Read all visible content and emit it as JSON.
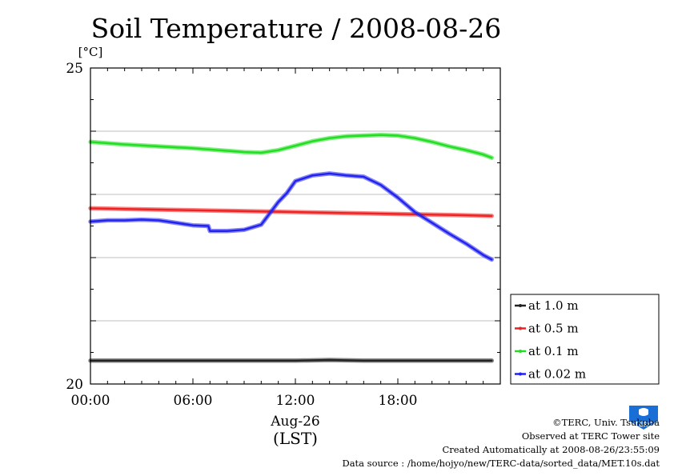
{
  "footer": {
    "copyright": "©TERC, Univ. Tsukuba",
    "observed": "Observed at TERC Tower site",
    "created": "Created Automatically at 2008-08-26/23:55:09",
    "source": "Data source : /home/hojyo/new/TERC-data/sorted_data/MET.10s.dat"
  },
  "logo": {
    "text": "TERC",
    "color": "#1a6fd6"
  },
  "chart_data": {
    "type": "line",
    "title": "Soil Temperature / 2008-08-26",
    "ylabel": "[°C]",
    "xlabel_date": "Aug-26",
    "xlabel_tz": "(LST)",
    "xlim": [
      0,
      24
    ],
    "ylim": [
      20,
      25
    ],
    "y_ticks_labeled": [
      {
        "value": 20,
        "label": "20"
      },
      {
        "value": 25,
        "label": "25"
      }
    ],
    "y_gridlines": [
      21,
      22,
      23,
      24
    ],
    "x_ticks_labeled": [
      {
        "value": 0,
        "label": "00:00"
      },
      {
        "value": 6,
        "label": "06:00"
      },
      {
        "value": 12,
        "label": "12:00"
      },
      {
        "value": 18,
        "label": "18:00"
      }
    ],
    "grid": true,
    "legend_position": "lower-right-outside",
    "series": [
      {
        "name": "at 1.0 m",
        "color": "#222222",
        "x": [
          0,
          2,
          4,
          6,
          8,
          10,
          12,
          14,
          16,
          18,
          20,
          22,
          23.5
        ],
        "y": [
          20.37,
          20.37,
          20.37,
          20.37,
          20.37,
          20.37,
          20.37,
          20.38,
          20.37,
          20.37,
          20.37,
          20.37,
          20.37
        ]
      },
      {
        "name": "at 0.5 m",
        "color": "#ee2222",
        "x": [
          0,
          2,
          4,
          6,
          8,
          10,
          12,
          14,
          16,
          18,
          20,
          22,
          23.5
        ],
        "y": [
          22.78,
          22.77,
          22.76,
          22.75,
          22.74,
          22.73,
          22.72,
          22.71,
          22.7,
          22.69,
          22.68,
          22.67,
          22.66
        ]
      },
      {
        "name": "at 0.1 m",
        "color": "#22dd22",
        "x": [
          0,
          2,
          4,
          6,
          8,
          9,
          10,
          11,
          12,
          13,
          14,
          15,
          16,
          17,
          18,
          19,
          20,
          21,
          22,
          23,
          23.5
        ],
        "y": [
          23.83,
          23.79,
          23.76,
          23.73,
          23.69,
          23.67,
          23.66,
          23.7,
          23.77,
          23.84,
          23.89,
          23.92,
          23.93,
          23.94,
          23.93,
          23.89,
          23.83,
          23.76,
          23.7,
          23.63,
          23.58
        ]
      },
      {
        "name": "at 0.02 m",
        "color": "#2222ee",
        "x": [
          0,
          1,
          2,
          3,
          4,
          5,
          6,
          6.9,
          7.0,
          8,
          9,
          10,
          10.5,
          11,
          11.5,
          12,
          13,
          14,
          15,
          16,
          17,
          18,
          19,
          20,
          21,
          22,
          23,
          23.5
        ],
        "y": [
          22.57,
          22.59,
          22.59,
          22.6,
          22.59,
          22.55,
          22.51,
          22.5,
          22.42,
          22.42,
          22.44,
          22.52,
          22.7,
          22.88,
          23.02,
          23.21,
          23.3,
          23.33,
          23.3,
          23.28,
          23.15,
          22.95,
          22.72,
          22.55,
          22.38,
          22.22,
          22.04,
          21.97
        ]
      }
    ]
  }
}
